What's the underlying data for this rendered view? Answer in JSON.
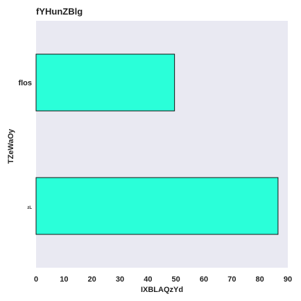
{
  "chart_data": {
    "type": "bar",
    "orientation": "horizontal",
    "title": "fYHunZBlg",
    "xlabel": "IXBLAQzYd",
    "ylabel": "TZeWaOy",
    "categories": [
      "flos",
      "zL"
    ],
    "values": [
      49.5,
      86.5
    ],
    "xlim": [
      0,
      90
    ],
    "xticks": [
      0,
      10,
      20,
      30,
      40,
      50,
      60,
      70,
      80,
      90
    ],
    "grid": false,
    "legend": "none",
    "colors": {
      "bar_fill": "#2affd9",
      "bar_edge": "#111111",
      "plot_background": "#e9e9f2"
    }
  }
}
